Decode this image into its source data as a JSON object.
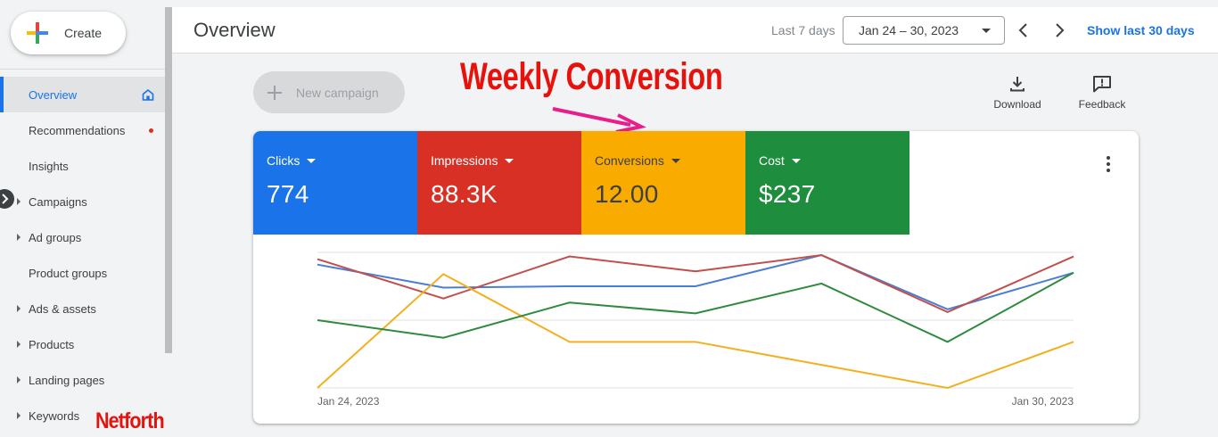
{
  "sidebar": {
    "create_label": "Create",
    "items": [
      {
        "label": "Overview",
        "active": true,
        "icon": "home-icon"
      },
      {
        "label": "Recommendations",
        "badge": "red-dot"
      },
      {
        "label": "Insights"
      },
      {
        "label": "Campaigns",
        "expandable": true
      },
      {
        "label": "Ad groups",
        "expandable": true
      },
      {
        "label": "Product groups"
      },
      {
        "label": "Ads & assets",
        "expandable": true
      },
      {
        "label": "Products",
        "expandable": true
      },
      {
        "label": "Landing pages",
        "expandable": true
      },
      {
        "label": "Keywords",
        "expandable": true
      }
    ],
    "watermark": "Netforth"
  },
  "header": {
    "title": "Overview",
    "range_label": "Last 7 days",
    "date_range": "Jan 24 – 30, 2023",
    "show_last_label": "Show last 30 days"
  },
  "toolbar": {
    "new_campaign_label": "New campaign",
    "download_label": "Download",
    "feedback_label": "Feedback"
  },
  "annotation": {
    "text": "Weekly Conversion",
    "color": "#e8120c"
  },
  "metrics": [
    {
      "label": "Clicks",
      "value": "774",
      "color": "#1a73e8"
    },
    {
      "label": "Impressions",
      "value": "88.3K",
      "color": "#d93025"
    },
    {
      "label": "Conversions",
      "value": "12.00",
      "color": "#f9ab00"
    },
    {
      "label": "Cost",
      "value": "$237",
      "color": "#1e8e3e"
    }
  ],
  "chart_data": {
    "type": "line",
    "x": [
      "Jan 24, 2023",
      "Jan 25, 2023",
      "Jan 26, 2023",
      "Jan 27, 2023",
      "Jan 28, 2023",
      "Jan 29, 2023",
      "Jan 30, 2023"
    ],
    "x_tick_labels": [
      "Jan 24, 2023",
      "Jan 30, 2023"
    ],
    "ylim": [
      0,
      1
    ],
    "grid": true,
    "series": [
      {
        "metric": "Clicks",
        "color": "#4a7ed3",
        "values": [
          0.91,
          0.74,
          0.75,
          0.75,
          0.98,
          0.58,
          0.85
        ]
      },
      {
        "metric": "Impressions",
        "color": "#c0504d",
        "values": [
          0.95,
          0.66,
          0.97,
          0.86,
          0.98,
          0.56,
          0.97
        ]
      },
      {
        "metric": "Conversions",
        "color": "#f2b01e",
        "values": [
          0.0,
          0.84,
          0.34,
          0.34,
          0.17,
          0.0,
          0.34
        ]
      },
      {
        "metric": "Cost",
        "color": "#2e8b3e",
        "values": [
          0.5,
          0.37,
          0.63,
          0.55,
          0.77,
          0.34,
          0.85
        ]
      }
    ]
  }
}
